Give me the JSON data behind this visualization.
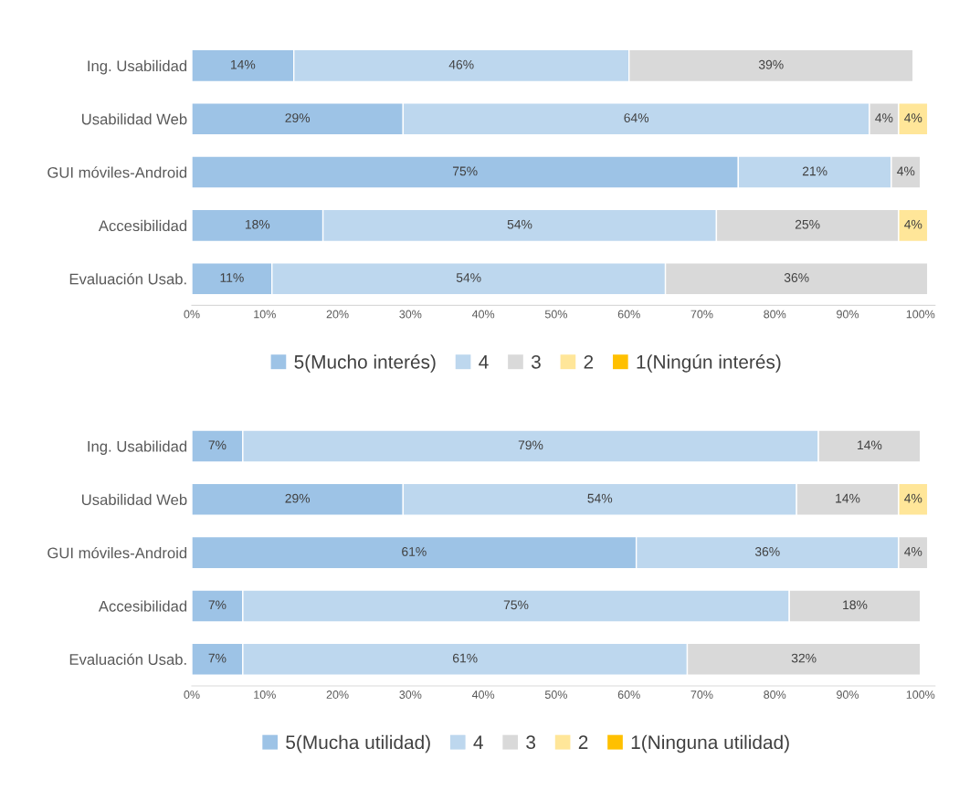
{
  "chart_data": [
    {
      "type": "bar",
      "orientation": "horizontal",
      "stacked": true,
      "data_labels": false,
      "legend": "bottom",
      "grid": false,
      "categories": [
        "Ing. Usabilidad",
        "Usabilidad Web",
        "GUI móviles-Android",
        "Accesibilidad",
        "Evaluación Usab."
      ],
      "xlim": [
        0,
        102
      ],
      "xticks": [
        {
          "value": 0,
          "label": "0%"
        },
        {
          "value": 10,
          "label": "10%"
        },
        {
          "value": 20,
          "label": "20%"
        },
        {
          "value": 30,
          "label": "30%"
        },
        {
          "value": 40,
          "label": "40%"
        },
        {
          "value": 50,
          "label": "50%"
        },
        {
          "value": 60,
          "label": "60%"
        },
        {
          "value": 70,
          "label": "70%"
        },
        {
          "value": 80,
          "label": "80%"
        },
        {
          "value": 90,
          "label": "90%"
        },
        {
          "value": 100,
          "label": "100%"
        }
      ],
      "series": [
        {
          "name": "5(Mucho interés)",
          "color": "#9dc3e6",
          "values": [
            14,
            29,
            75,
            18,
            11
          ],
          "value_labels": [
            "14%",
            "29%",
            "75%",
            "18%",
            "11%"
          ]
        },
        {
          "name": "4",
          "color": "#bdd7ee",
          "values": [
            46,
            64,
            21,
            54,
            54
          ],
          "value_labels": [
            "46%",
            "64%",
            "21%",
            "54%",
            "54%"
          ]
        },
        {
          "name": "3",
          "color": "#d9d9d9",
          "values": [
            39,
            4,
            4,
            25,
            36
          ],
          "value_labels": [
            "39%",
            "4%",
            "4%",
            "25%",
            "36%"
          ]
        },
        {
          "name": "2",
          "color": "#ffe699",
          "values": [
            null,
            4,
            null,
            4,
            null
          ],
          "value_labels": [
            null,
            "4%",
            null,
            "4%",
            null
          ]
        },
        {
          "name": "1(Ningún interés)",
          "color": "#ffc000",
          "values": [
            null,
            null,
            null,
            null,
            null
          ],
          "value_labels": [
            null,
            null,
            null,
            null,
            null
          ]
        }
      ]
    },
    {
      "type": "bar",
      "orientation": "horizontal",
      "stacked": true,
      "data_labels": false,
      "legend": "bottom",
      "grid": false,
      "categories": [
        "Ing. Usabilidad",
        "Usabilidad Web",
        "GUI móviles-Android",
        "Accesibilidad",
        "Evaluación Usab."
      ],
      "xlim": [
        0,
        102
      ],
      "xticks": [
        {
          "value": 0,
          "label": "0%"
        },
        {
          "value": 10,
          "label": "10%"
        },
        {
          "value": 20,
          "label": "20%"
        },
        {
          "value": 30,
          "label": "30%"
        },
        {
          "value": 40,
          "label": "40%"
        },
        {
          "value": 50,
          "label": "50%"
        },
        {
          "value": 60,
          "label": "60%"
        },
        {
          "value": 70,
          "label": "70%"
        },
        {
          "value": 80,
          "label": "80%"
        },
        {
          "value": 90,
          "label": "90%"
        },
        {
          "value": 100,
          "label": "100%"
        }
      ],
      "series": [
        {
          "name": "5(Mucha utilidad)",
          "color": "#9dc3e6",
          "values": [
            7,
            29,
            61,
            7,
            7
          ],
          "value_labels": [
            "7%",
            "29%",
            "61%",
            "7%",
            "7%"
          ]
        },
        {
          "name": "4",
          "color": "#bdd7ee",
          "values": [
            79,
            54,
            36,
            75,
            61
          ],
          "value_labels": [
            "79%",
            "54%",
            "36%",
            "75%",
            "61%"
          ]
        },
        {
          "name": "3",
          "color": "#d9d9d9",
          "values": [
            14,
            14,
            4,
            18,
            32
          ],
          "value_labels": [
            "14%",
            "14%",
            "4%",
            "18%",
            "32%"
          ]
        },
        {
          "name": "2",
          "color": "#ffe699",
          "values": [
            null,
            4,
            null,
            null,
            null
          ],
          "value_labels": [
            null,
            "4%",
            null,
            null,
            null
          ]
        },
        {
          "name": "1(Ninguna utilidad)",
          "color": "#ffc000",
          "values": [
            null,
            null,
            null,
            null,
            null
          ],
          "value_labels": [
            null,
            null,
            null,
            null,
            null
          ]
        }
      ]
    }
  ]
}
